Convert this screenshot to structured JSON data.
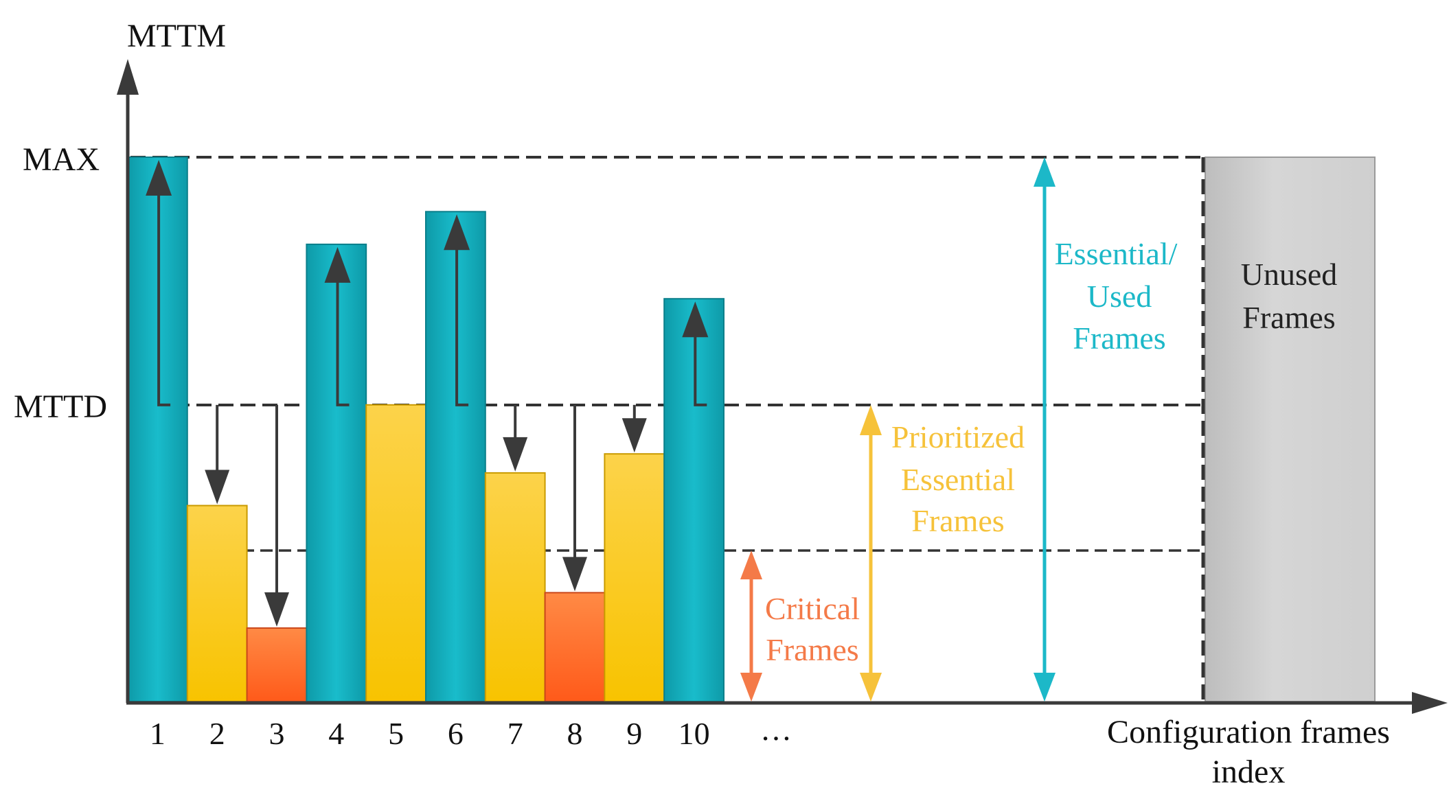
{
  "chart_data": {
    "type": "bar",
    "title": "",
    "ylabel": "MTTM",
    "xlabel": "Configuration frames index",
    "y_ticks": {
      "max": "MAX",
      "mttd": "MTTD"
    },
    "ylim": [
      0,
      100
    ],
    "levels": {
      "max": 100,
      "mttd": 54.5,
      "critical": 28
    },
    "categories": [
      "1",
      "2",
      "3",
      "4",
      "5",
      "6",
      "7",
      "8",
      "9",
      "10"
    ],
    "ellipsis": "…",
    "values": [
      100,
      36,
      13.5,
      84,
      54.5,
      90,
      42,
      20,
      45.5,
      74
    ],
    "frame_types": [
      "essential",
      "prioritized",
      "critical",
      "essential",
      "prioritized",
      "essential",
      "prioritized",
      "critical",
      "prioritized",
      "essential"
    ],
    "arrow_directions": [
      "up",
      "down",
      "down",
      "up",
      "none",
      "up",
      "down",
      "down",
      "down",
      "up"
    ],
    "annotations": {
      "critical": {
        "line1": "Critical",
        "line2": "Frames"
      },
      "prioritized": {
        "line1": "Prioritized",
        "line2": "Essential",
        "line3": "Frames"
      },
      "essential": {
        "line1": "Essential/",
        "line2": "Used",
        "line3": "Frames"
      },
      "unused": {
        "line1": "Unused",
        "line2": "Frames"
      }
    },
    "xlabel_lines": {
      "line1": "Configuration frames",
      "line2": "index"
    }
  },
  "colors": {
    "essential": "#12B5C3",
    "essential_text": "#1CB8C8",
    "prioritized": "#FCCB2C",
    "prioritized_text": "#F6C23A",
    "critical": "#FF6A2B",
    "critical_text": "#F47A48",
    "unused": "#D2D2D2",
    "axis": "#3a3a3a"
  }
}
